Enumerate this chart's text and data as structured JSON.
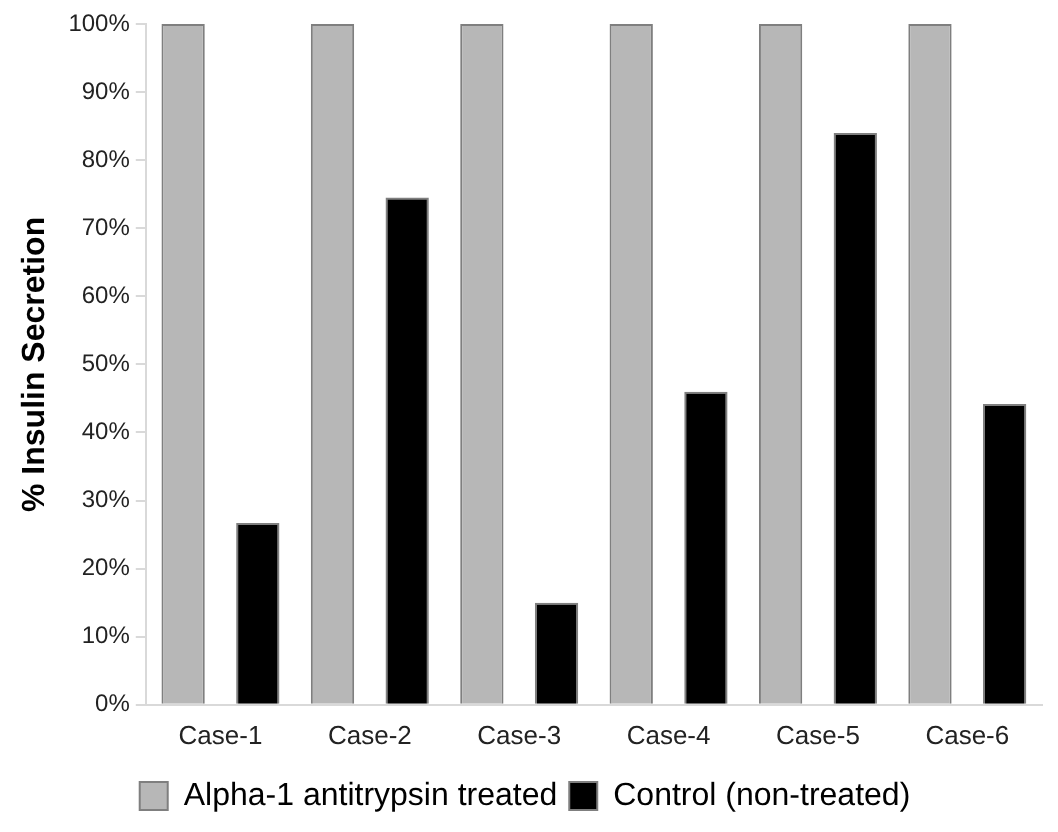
{
  "chart_data": {
    "type": "bar",
    "ylabel": "% Insulin Secretion",
    "categories": [
      "Case-1",
      "Case-2",
      "Case-3",
      "Case-4",
      "Case-5",
      "Case-6"
    ],
    "series": [
      {
        "name": "Alpha-1 antitrypsin treated",
        "color": "#b7b7b7",
        "values": [
          100,
          100,
          100,
          100,
          100,
          100
        ]
      },
      {
        "name": "Control (non-treated)",
        "color": "#000000",
        "values": [
          26.7,
          74.5,
          15,
          46,
          84,
          44.2
        ]
      }
    ],
    "ylim": [
      0,
      100
    ],
    "yticks": [
      {
        "value": 0,
        "label": "0%"
      },
      {
        "value": 10,
        "label": "10%"
      },
      {
        "value": 20,
        "label": "20%"
      },
      {
        "value": 30,
        "label": "30%"
      },
      {
        "value": 40,
        "label": "40%"
      },
      {
        "value": 50,
        "label": "50%"
      },
      {
        "value": 60,
        "label": "60%"
      },
      {
        "value": 70,
        "label": "70%"
      },
      {
        "value": 80,
        "label": "80%"
      },
      {
        "value": 90,
        "label": "90%"
      },
      {
        "value": 100,
        "label": "100%"
      }
    ],
    "grid": false,
    "legend": "bottom"
  }
}
